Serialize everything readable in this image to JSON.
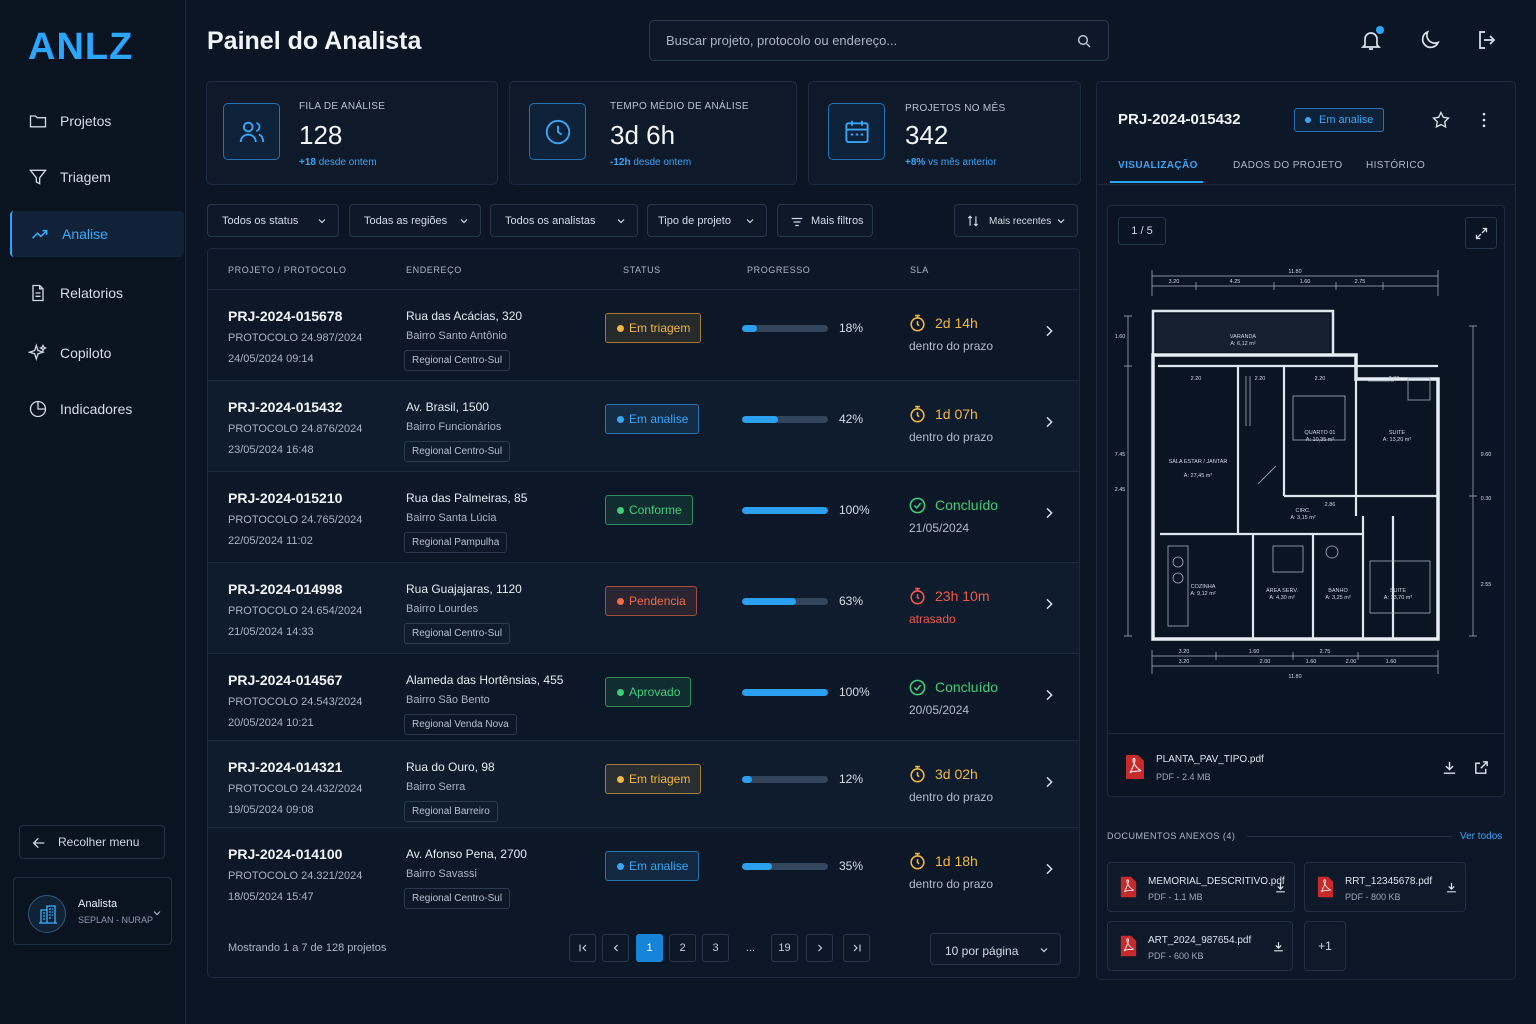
{
  "brand": {
    "logo": "ANLZ"
  },
  "sidebar": {
    "items": [
      {
        "label": "Projetos",
        "icon": "folder-icon"
      },
      {
        "label": "Triagem",
        "icon": "filter-icon"
      },
      {
        "label": "Analise",
        "icon": "trend-icon",
        "active": true
      },
      {
        "label": "Relatorios",
        "icon": "document-icon"
      },
      {
        "label": "Copiloto",
        "icon": "sparkle-icon"
      },
      {
        "label": "Indicadores",
        "icon": "pie-icon"
      }
    ],
    "collapse_label": "Recolher menu",
    "user": {
      "name": "Analista",
      "role": "SEPLAN - NURAP"
    }
  },
  "header": {
    "title": "Painel do Analista",
    "search_placeholder": "Buscar projeto, protocolo ou endereço..."
  },
  "kpis": [
    {
      "label": "FILA DE ANÁLISE",
      "value": "128",
      "delta": "+18",
      "delta_text": "desde ontem",
      "icon": "users-icon"
    },
    {
      "label": "TEMPO MÉDIO DE ANÁLISE",
      "value": "3d 6h",
      "delta": "-12h",
      "delta_text": "desde ontem",
      "icon": "clock-icon"
    },
    {
      "label": "PROJETOS NO MÊS",
      "value": "342",
      "delta": "+8%",
      "delta_text": "vs mês anterior",
      "icon": "calendar-icon"
    }
  ],
  "filters": {
    "status": "Todos os status",
    "region": "Todas as regiões",
    "analyst": "Todos os analistas",
    "type": "Tipo de projeto",
    "more": "Mais filtros",
    "sort": "Mais recentes"
  },
  "table": {
    "headers": {
      "project": "PROJETO / PROTOCOLO",
      "address": "ENDEREÇO",
      "status": "STATUS",
      "progress": "PROGRESSO",
      "sla": "SLA"
    },
    "rows": [
      {
        "id": "PRJ-2024-015678",
        "protocol": "PROTOCOLO 24.987/2024",
        "date": "24/05/2024 09:14",
        "address": "Rua das Acácias, 320",
        "district": "Bairro Santo Antônio",
        "region": "Regional Centro-Sul",
        "status": "Em triagem",
        "progress": 18,
        "progress_label": "18%",
        "sla": "2d 14h",
        "sla_sub": "dentro do prazo",
        "sla_kind": "timer"
      },
      {
        "id": "PRJ-2024-015432",
        "protocol": "PROTOCOLO 24.876/2024",
        "date": "23/05/2024 16:48",
        "address": "Av. Brasil, 1500",
        "district": "Bairro Funcionários",
        "region": "Regional Centro-Sul",
        "status": "Em analise",
        "progress": 42,
        "progress_label": "42%",
        "sla": "1d 07h",
        "sla_sub": "dentro do prazo",
        "sla_kind": "timer"
      },
      {
        "id": "PRJ-2024-015210",
        "protocol": "PROTOCOLO 24.765/2024",
        "date": "22/05/2024 11:02",
        "address": "Rua das Palmeiras, 85",
        "district": "Bairro Santa Lúcia",
        "region": "Regional Pampulha",
        "status": "Conforme",
        "progress": 100,
        "progress_label": "100%",
        "sla": "Concluído",
        "sla_sub": "21/05/2024",
        "sla_kind": "done"
      },
      {
        "id": "PRJ-2024-014998",
        "protocol": "PROTOCOLO 24.654/2024",
        "date": "21/05/2024 14:33",
        "address": "Rua Guajajaras, 1120",
        "district": "Bairro Lourdes",
        "region": "Regional Centro-Sul",
        "status": "Pendencia",
        "progress": 63,
        "progress_label": "63%",
        "sla": "23h 10m",
        "sla_sub": "atrasado",
        "sla_kind": "late"
      },
      {
        "id": "PRJ-2024-014567",
        "protocol": "PROTOCOLO 24.543/2024",
        "date": "20/05/2024 10:21",
        "address": "Alameda das Hortênsias, 455",
        "district": "Bairro São Bento",
        "region": "Regional Venda Nova",
        "status": "Aprovado",
        "progress": 100,
        "progress_label": "100%",
        "sla": "Concluído",
        "sla_sub": "20/05/2024",
        "sla_kind": "done"
      },
      {
        "id": "PRJ-2024-014321",
        "protocol": "PROTOCOLO 24.432/2024",
        "date": "19/05/2024 09:08",
        "address": "Rua do Ouro, 98",
        "district": "Bairro Serra",
        "region": "Regional Barreiro",
        "status": "Em triagem",
        "progress": 12,
        "progress_label": "12%",
        "sla": "3d 02h",
        "sla_sub": "dentro do prazo",
        "sla_kind": "timer"
      },
      {
        "id": "PRJ-2024-014100",
        "protocol": "PROTOCOLO 24.321/2024",
        "date": "18/05/2024 15:47",
        "address": "Av. Afonso Pena, 2700",
        "district": "Bairro Savassi",
        "region": "Regional Centro-Sul",
        "status": "Em analise",
        "progress": 35,
        "progress_label": "35%",
        "sla": "1d 18h",
        "sla_sub": "dentro do prazo",
        "sla_kind": "timer"
      }
    ],
    "footer": "Mostrando 1 a 7 de 128 projetos",
    "pages": [
      "1",
      "2",
      "3",
      "...",
      "19"
    ],
    "per_page": "10 por página"
  },
  "status_colors": {
    "Em triagem": "#f2b740",
    "Em analise": "#3aa6f5",
    "Conforme": "#3fcf7a",
    "Pendencia": "#f26a4b",
    "Aprovado": "#3fcf7a"
  },
  "panel": {
    "project_id": "PRJ-2024-015432",
    "status": "Em analise",
    "tabs": [
      "VISUALIZAÇÃO",
      "DADOS DO PROJETO",
      "HISTÓRICO"
    ],
    "page_indicator": "1 / 5",
    "plan_labels": {
      "dims_top": [
        "11.80",
        "3.20",
        "4.25",
        "1.60",
        "2.75"
      ],
      "dims_bottom": [
        "3.20",
        "1.60",
        "2.75",
        "3.20",
        "2.00",
        "1.60",
        "2.00",
        "1.60",
        "11.80"
      ],
      "dims_left": [
        "1.60",
        "7.45",
        "2.45"
      ],
      "dims_right": [
        "9.60",
        "0.30",
        "2.55"
      ],
      "rooms": [
        {
          "name": "VARANDA",
          "area": "A: 6,12 m²"
        },
        {
          "name": "SALA ESTAR / JANTAR",
          "area": "A: 27,45 m²"
        },
        {
          "name": "QUARTO 01",
          "area": "A: 10,35 m²"
        },
        {
          "name": "SUITE",
          "area": "A: 13,20 m²"
        },
        {
          "name": "CIRC.",
          "area": "A: 3,15 m²"
        },
        {
          "name": "COZINHA",
          "area": "A: 9,12 m²"
        },
        {
          "name": "ÁREA SERV.",
          "area": "A: 4,30 m²"
        },
        {
          "name": "BANHO",
          "area": "A: 3,25 m²"
        },
        {
          "name": "SUITE",
          "area": "A: 13,70 m²"
        }
      ],
      "inner_dims": [
        "2.20",
        "2.20",
        "2.20",
        "2.80",
        "2.86"
      ]
    },
    "file": {
      "name": "PLANTA_PAV_TIPO.pdf",
      "meta": "PDF - 2.4 MB"
    },
    "attachments_title": "DOCUMENTOS ANEXOS (4)",
    "see_all": "Ver todos",
    "attachments": [
      {
        "name": "MEMORIAL_DESCRITIVO.pdf",
        "meta": "PDF - 1.1 MB"
      },
      {
        "name": "RRT_12345678.pdf",
        "meta": "PDF - 800 KB"
      },
      {
        "name": "ART_2024_987654.pdf",
        "meta": "PDF - 600 KB"
      }
    ],
    "more_count": "+1"
  }
}
